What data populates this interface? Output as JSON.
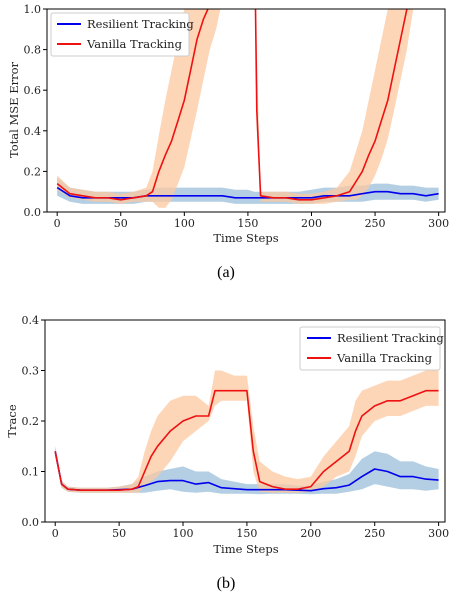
{
  "chart_data": [
    {
      "type": "line",
      "panel": "(a)",
      "xlabel": "Time Steps",
      "ylabel": "Total MSE Error",
      "xlim": [
        -8,
        305
      ],
      "ylim": [
        0,
        1.0
      ],
      "xticks": [
        "0",
        "50",
        "100",
        "150",
        "200",
        "250",
        "300"
      ],
      "yticks": [
        "0.0",
        "0.2",
        "0.4",
        "0.6",
        "0.8",
        "1.0"
      ],
      "legend_position": "top-left",
      "grid": false,
      "series": [
        {
          "name": "Resilient Tracking",
          "color": "#0000ee",
          "band_color": "#9bbfd9",
          "x": [
            0,
            10,
            20,
            30,
            40,
            50,
            60,
            70,
            80,
            90,
            100,
            110,
            120,
            130,
            140,
            150,
            155,
            160,
            170,
            180,
            190,
            200,
            210,
            220,
            230,
            240,
            250,
            260,
            270,
            280,
            290,
            300
          ],
          "y": [
            0.12,
            0.08,
            0.07,
            0.07,
            0.07,
            0.07,
            0.07,
            0.08,
            0.08,
            0.08,
            0.08,
            0.08,
            0.08,
            0.08,
            0.07,
            0.07,
            0.07,
            0.07,
            0.07,
            0.07,
            0.07,
            0.07,
            0.08,
            0.08,
            0.08,
            0.09,
            0.1,
            0.1,
            0.09,
            0.09,
            0.08,
            0.09
          ],
          "lower": [
            0.08,
            0.05,
            0.04,
            0.04,
            0.04,
            0.04,
            0.04,
            0.05,
            0.05,
            0.05,
            0.05,
            0.05,
            0.05,
            0.05,
            0.04,
            0.04,
            0.04,
            0.04,
            0.04,
            0.04,
            0.04,
            0.04,
            0.05,
            0.05,
            0.05,
            0.05,
            0.06,
            0.06,
            0.06,
            0.06,
            0.05,
            0.06
          ],
          "upper": [
            0.17,
            0.12,
            0.11,
            0.1,
            0.1,
            0.1,
            0.1,
            0.11,
            0.12,
            0.12,
            0.12,
            0.12,
            0.12,
            0.12,
            0.11,
            0.11,
            0.1,
            0.1,
            0.1,
            0.1,
            0.1,
            0.11,
            0.12,
            0.12,
            0.13,
            0.13,
            0.14,
            0.14,
            0.13,
            0.13,
            0.12,
            0.12
          ]
        },
        {
          "name": "Vanilla Tracking",
          "color": "#ee1111",
          "band_color": "#fcc8a0",
          "x": [
            0,
            10,
            20,
            30,
            40,
            50,
            60,
            70,
            75,
            80,
            85,
            90,
            95,
            100,
            105,
            110,
            115,
            120,
            125,
            130,
            140,
            150,
            155,
            156,
            157,
            160,
            170,
            180,
            190,
            200,
            210,
            220,
            230,
            235,
            240,
            245,
            250,
            255,
            260,
            265,
            270,
            275,
            280,
            290,
            300
          ],
          "y": [
            0.14,
            0.09,
            0.08,
            0.07,
            0.07,
            0.06,
            0.07,
            0.08,
            0.1,
            0.2,
            0.28,
            0.35,
            0.45,
            0.55,
            0.7,
            0.85,
            0.95,
            1.02,
            1.05,
            1.05,
            1.05,
            1.05,
            1.05,
            1.0,
            0.5,
            0.08,
            0.07,
            0.07,
            0.06,
            0.06,
            0.07,
            0.08,
            0.1,
            0.15,
            0.2,
            0.28,
            0.35,
            0.45,
            0.55,
            0.7,
            0.85,
            1.0,
            1.05,
            1.05,
            1.05
          ],
          "lower": [
            0.11,
            0.07,
            0.06,
            0.05,
            0.05,
            0.04,
            0.05,
            0.05,
            0.05,
            0.02,
            0.02,
            0.06,
            0.14,
            0.22,
            0.36,
            0.5,
            0.65,
            0.8,
            0.9,
            1.05,
            1.05,
            1.05,
            1.05,
            1.0,
            0.4,
            0.05,
            0.05,
            0.05,
            0.04,
            0.04,
            0.04,
            0.05,
            0.06,
            0.06,
            0.08,
            0.12,
            0.18,
            0.26,
            0.36,
            0.5,
            0.65,
            0.8,
            1.0,
            1.05,
            1.05
          ],
          "upper": [
            0.18,
            0.12,
            0.11,
            0.1,
            0.1,
            0.09,
            0.1,
            0.12,
            0.2,
            0.38,
            0.55,
            0.7,
            0.85,
            1.0,
            1.05,
            1.05,
            1.05,
            1.05,
            1.05,
            1.05,
            1.05,
            1.05,
            1.05,
            1.05,
            0.8,
            0.1,
            0.1,
            0.1,
            0.09,
            0.09,
            0.1,
            0.12,
            0.2,
            0.3,
            0.4,
            0.55,
            0.7,
            0.85,
            1.0,
            1.05,
            1.05,
            1.05,
            1.05,
            1.05,
            1.05
          ]
        }
      ]
    },
    {
      "type": "line",
      "panel": "(b)",
      "xlabel": "Time Steps",
      "ylabel": "Trace",
      "xlim": [
        -8,
        305
      ],
      "ylim": [
        0,
        0.4
      ],
      "xticks": [
        "0",
        "50",
        "100",
        "150",
        "200",
        "250",
        "300"
      ],
      "yticks": [
        "0.0",
        "0.1",
        "0.2",
        "0.3",
        "0.4"
      ],
      "legend_position": "top-right",
      "grid": false,
      "series": [
        {
          "name": "Resilient Tracking",
          "color": "#0000ee",
          "band_color": "#9bbfd9",
          "x": [
            0,
            5,
            10,
            20,
            30,
            40,
            50,
            60,
            70,
            80,
            90,
            100,
            110,
            120,
            130,
            140,
            150,
            160,
            170,
            180,
            190,
            200,
            210,
            220,
            230,
            240,
            250,
            260,
            270,
            280,
            290,
            300
          ],
          "y": [
            0.14,
            0.075,
            0.065,
            0.063,
            0.063,
            0.063,
            0.064,
            0.065,
            0.072,
            0.08,
            0.082,
            0.082,
            0.075,
            0.078,
            0.068,
            0.066,
            0.064,
            0.064,
            0.064,
            0.064,
            0.063,
            0.062,
            0.066,
            0.068,
            0.073,
            0.09,
            0.105,
            0.1,
            0.09,
            0.09,
            0.085,
            0.083
          ],
          "lower": [
            0.13,
            0.068,
            0.06,
            0.058,
            0.058,
            0.058,
            0.058,
            0.058,
            0.058,
            0.062,
            0.065,
            0.06,
            0.058,
            0.06,
            0.056,
            0.056,
            0.056,
            0.055,
            0.056,
            0.056,
            0.056,
            0.055,
            0.056,
            0.056,
            0.06,
            0.065,
            0.075,
            0.07,
            0.065,
            0.065,
            0.062,
            0.065
          ],
          "upper": [
            0.15,
            0.082,
            0.07,
            0.068,
            0.068,
            0.068,
            0.07,
            0.075,
            0.09,
            0.1,
            0.105,
            0.11,
            0.1,
            0.1,
            0.085,
            0.08,
            0.075,
            0.075,
            0.075,
            0.075,
            0.072,
            0.072,
            0.08,
            0.085,
            0.095,
            0.125,
            0.14,
            0.135,
            0.12,
            0.12,
            0.11,
            0.105
          ]
        },
        {
          "name": "Vanilla Tracking",
          "color": "#ee1111",
          "band_color": "#fcc8a0",
          "x": [
            0,
            5,
            10,
            20,
            30,
            40,
            50,
            60,
            65,
            70,
            75,
            80,
            90,
            100,
            110,
            120,
            125,
            130,
            140,
            150,
            155,
            160,
            170,
            180,
            190,
            200,
            210,
            220,
            230,
            235,
            240,
            250,
            260,
            270,
            280,
            290,
            300
          ],
          "y": [
            0.14,
            0.075,
            0.065,
            0.063,
            0.063,
            0.063,
            0.063,
            0.065,
            0.07,
            0.1,
            0.13,
            0.15,
            0.18,
            0.2,
            0.21,
            0.21,
            0.26,
            0.26,
            0.26,
            0.26,
            0.14,
            0.08,
            0.07,
            0.065,
            0.065,
            0.07,
            0.1,
            0.12,
            0.14,
            0.18,
            0.21,
            0.23,
            0.24,
            0.24,
            0.25,
            0.26,
            0.26
          ],
          "lower": [
            0.13,
            0.068,
            0.06,
            0.058,
            0.058,
            0.058,
            0.058,
            0.058,
            0.058,
            0.07,
            0.08,
            0.09,
            0.12,
            0.16,
            0.18,
            0.2,
            0.23,
            0.24,
            0.24,
            0.24,
            0.1,
            0.06,
            0.058,
            0.058,
            0.058,
            0.06,
            0.07,
            0.09,
            0.1,
            0.13,
            0.17,
            0.2,
            0.21,
            0.21,
            0.22,
            0.23,
            0.23
          ],
          "upper": [
            0.15,
            0.082,
            0.07,
            0.068,
            0.068,
            0.068,
            0.07,
            0.075,
            0.09,
            0.14,
            0.18,
            0.21,
            0.24,
            0.25,
            0.25,
            0.23,
            0.3,
            0.3,
            0.29,
            0.29,
            0.19,
            0.12,
            0.1,
            0.09,
            0.085,
            0.09,
            0.13,
            0.16,
            0.19,
            0.24,
            0.26,
            0.27,
            0.28,
            0.28,
            0.29,
            0.3,
            0.3
          ]
        }
      ]
    }
  ],
  "captions": [
    "(a)",
    "(b)"
  ]
}
